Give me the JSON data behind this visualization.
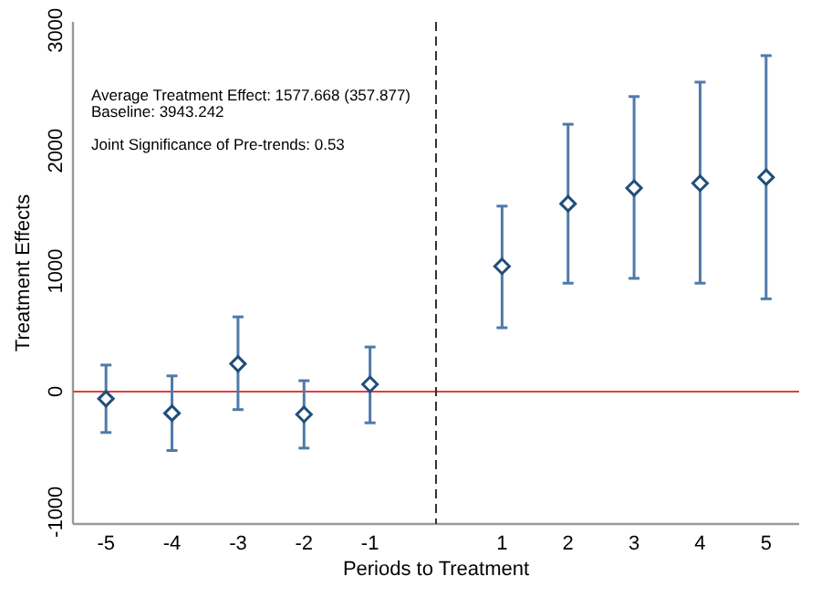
{
  "chart_data": {
    "type": "scatter",
    "xlabel": "Periods to Treatment",
    "ylabel": "Treatment Effects",
    "x": [
      -5,
      -4,
      -3,
      -2,
      -1,
      1,
      2,
      3,
      4,
      5
    ],
    "xlim": [
      -5.5,
      5.5
    ],
    "xticks": [
      -5,
      -4,
      -3,
      -2,
      -1,
      1,
      2,
      3,
      4,
      5
    ],
    "series": [
      {
        "color": "#1f4e79",
        "values": [
          -60,
          -180,
          230,
          -190,
          60,
          1040,
          1560,
          1690,
          1730,
          1780
        ],
        "errors": [
          [
            -340,
            220
          ],
          [
            -490,
            130
          ],
          [
            -150,
            620
          ],
          [
            -470,
            90
          ],
          [
            -260,
            370
          ],
          [
            530,
            1540
          ],
          [
            900,
            2220
          ],
          [
            940,
            2450
          ],
          [
            900,
            2570
          ],
          [
            770,
            2790
          ]
        ]
      }
    ],
    "ylim": [
      -1100,
      3070
    ],
    "yticks": [
      -1000,
      0,
      1000,
      2000,
      3000
    ],
    "marker": "diamond",
    "grid": false,
    "ref_lines": [
      {
        "axis": "y",
        "value": 0,
        "color": "#e0403a",
        "line_style": "solid"
      },
      {
        "axis": "x",
        "value": 0,
        "color": "#333333",
        "line_style": "dashed"
      }
    ],
    "annotations": [
      "Average Treatment Effect: 1577.668 (357.877)",
      "Baseline: 3943.242",
      "Joint Significance of Pre-trends: 0.53"
    ]
  }
}
